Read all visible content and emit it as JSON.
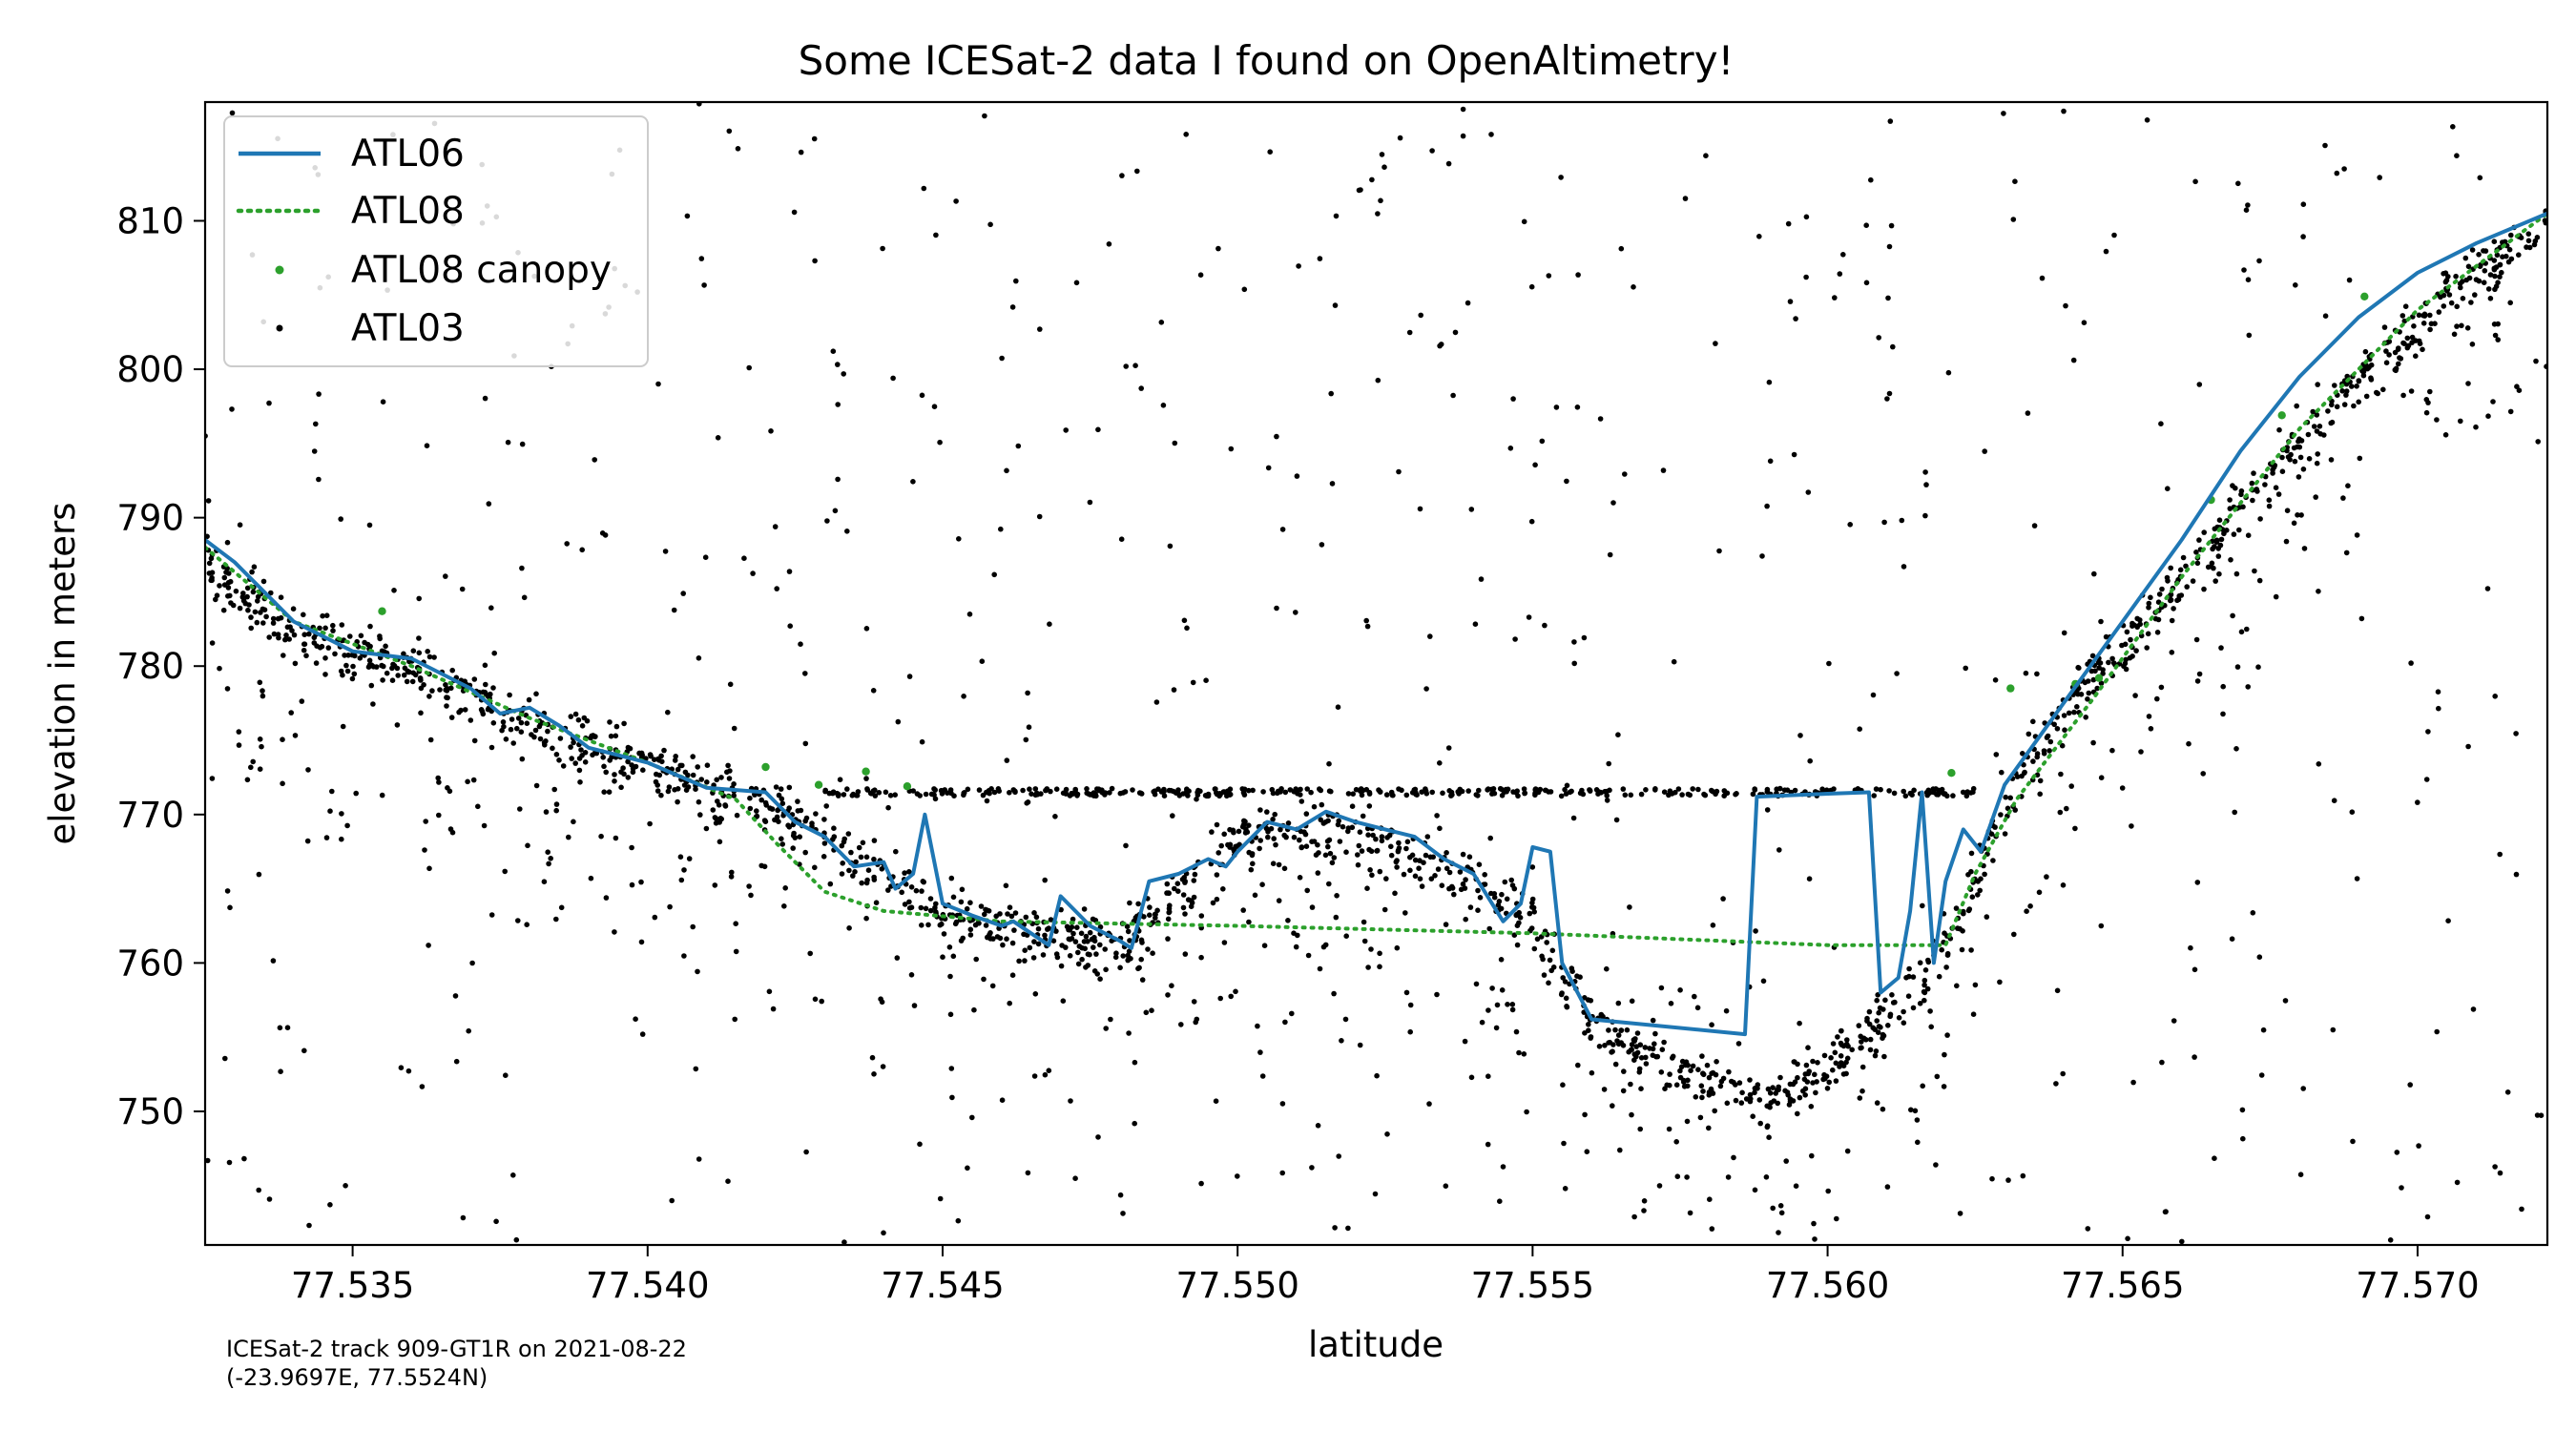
{
  "chart_data": {
    "type": "line+scatter",
    "title": "Some ICESat-2 data I found on OpenAltimetry!",
    "xlabel": "latitude",
    "ylabel": "elevation in meters",
    "xlim": [
      77.5325,
      77.5722
    ],
    "ylim": [
      741,
      818
    ],
    "xticks": [
      77.535,
      77.54,
      77.545,
      77.55,
      77.555,
      77.56,
      77.565,
      77.57
    ],
    "xtick_labels": [
      "77.535",
      "77.540",
      "77.545",
      "77.550",
      "77.555",
      "77.560",
      "77.565",
      "77.570"
    ],
    "yticks": [
      750,
      760,
      770,
      780,
      790,
      800,
      810
    ],
    "ytick_labels": [
      "750",
      "760",
      "770",
      "780",
      "790",
      "800",
      "810"
    ],
    "grid": false,
    "legend_position": "top-left",
    "footnote": [
      "ICESat-2 track 909-GT1R on 2021-08-22",
      "(-23.9697E, 77.5524N)"
    ],
    "colors": {
      "atl06": "#1f77b4",
      "atl08": "#2ca02c",
      "atl03": "#000000"
    },
    "series": [
      {
        "name": "ATL06",
        "style": "line-solid",
        "x": [
          77.5325,
          77.533,
          77.534,
          77.535,
          77.536,
          77.537,
          77.5375,
          77.538,
          77.5385,
          77.539,
          77.54,
          77.541,
          77.542,
          77.5425,
          77.543,
          77.5435,
          77.544,
          77.5442,
          77.5445,
          77.5447,
          77.545,
          77.5455,
          77.546,
          77.5462,
          77.5465,
          77.5468,
          77.547,
          77.5475,
          77.548,
          77.5482,
          77.5485,
          77.549,
          77.5495,
          77.5498,
          77.55,
          77.5505,
          77.551,
          77.5515,
          77.552,
          77.5525,
          77.553,
          77.5535,
          77.554,
          77.5545,
          77.5548,
          77.555,
          77.5553,
          77.5555,
          77.556,
          77.5586,
          77.5588,
          77.56,
          77.5607,
          77.5609,
          77.5612,
          77.5614,
          77.5616,
          77.5618,
          77.562,
          77.5623,
          77.5626,
          77.563,
          77.564,
          77.565,
          77.566,
          77.567,
          77.568,
          77.569,
          77.57,
          77.571,
          77.5722
        ],
        "y": [
          788.5,
          787,
          783,
          781,
          780.5,
          778.5,
          776.8,
          777.2,
          776,
          774.5,
          773.5,
          771.8,
          771.5,
          769.5,
          768.5,
          766.5,
          766.8,
          765.0,
          766.0,
          770.0,
          764.0,
          763.2,
          762.5,
          762.8,
          762.0,
          761.2,
          764.5,
          762.5,
          761.5,
          761.0,
          765.5,
          766.0,
          767.0,
          766.5,
          767.5,
          769.5,
          769.0,
          770.2,
          769.5,
          769.0,
          768.5,
          767.0,
          766.0,
          762.8,
          764.0,
          767.8,
          767.5,
          760.0,
          756.2,
          755.2,
          771.2,
          771.4,
          771.5,
          758.0,
          759.0,
          763.5,
          771.5,
          760.0,
          765.5,
          769.0,
          767.5,
          772.0,
          777.5,
          783.0,
          788.5,
          794.5,
          799.5,
          803.5,
          806.5,
          808.5,
          810.5
        ]
      },
      {
        "name": "ATL08",
        "style": "line-dotted",
        "x": [
          77.5325,
          77.534,
          77.536,
          77.538,
          77.54,
          77.5415,
          77.5422,
          77.543,
          77.544,
          77.546,
          77.55,
          77.555,
          77.56,
          77.562,
          77.5625,
          77.5632,
          77.5645,
          77.566,
          77.568,
          77.57,
          77.5722
        ],
        "y": [
          788.0,
          783.0,
          780.0,
          776.5,
          773.5,
          771.0,
          768.0,
          764.8,
          763.5,
          762.8,
          762.5,
          762.0,
          761.2,
          761.2,
          766.0,
          771.0,
          777.8,
          786.0,
          796.0,
          804.0,
          810.5
        ]
      },
      {
        "name": "ATL08 canopy",
        "style": "scatter",
        "x": [
          77.5355,
          77.542,
          77.5429,
          77.5437,
          77.5444,
          77.5621,
          77.5631,
          77.5642,
          77.5646,
          77.5665,
          77.5677,
          77.5691
        ],
        "y": [
          783.7,
          773.2,
          772.0,
          772.9,
          771.9,
          772.8,
          778.5,
          778.8,
          779.2,
          791.2,
          796.9,
          804.9
        ]
      },
      {
        "name": "ATL03",
        "style": "scatter"
      }
    ]
  }
}
